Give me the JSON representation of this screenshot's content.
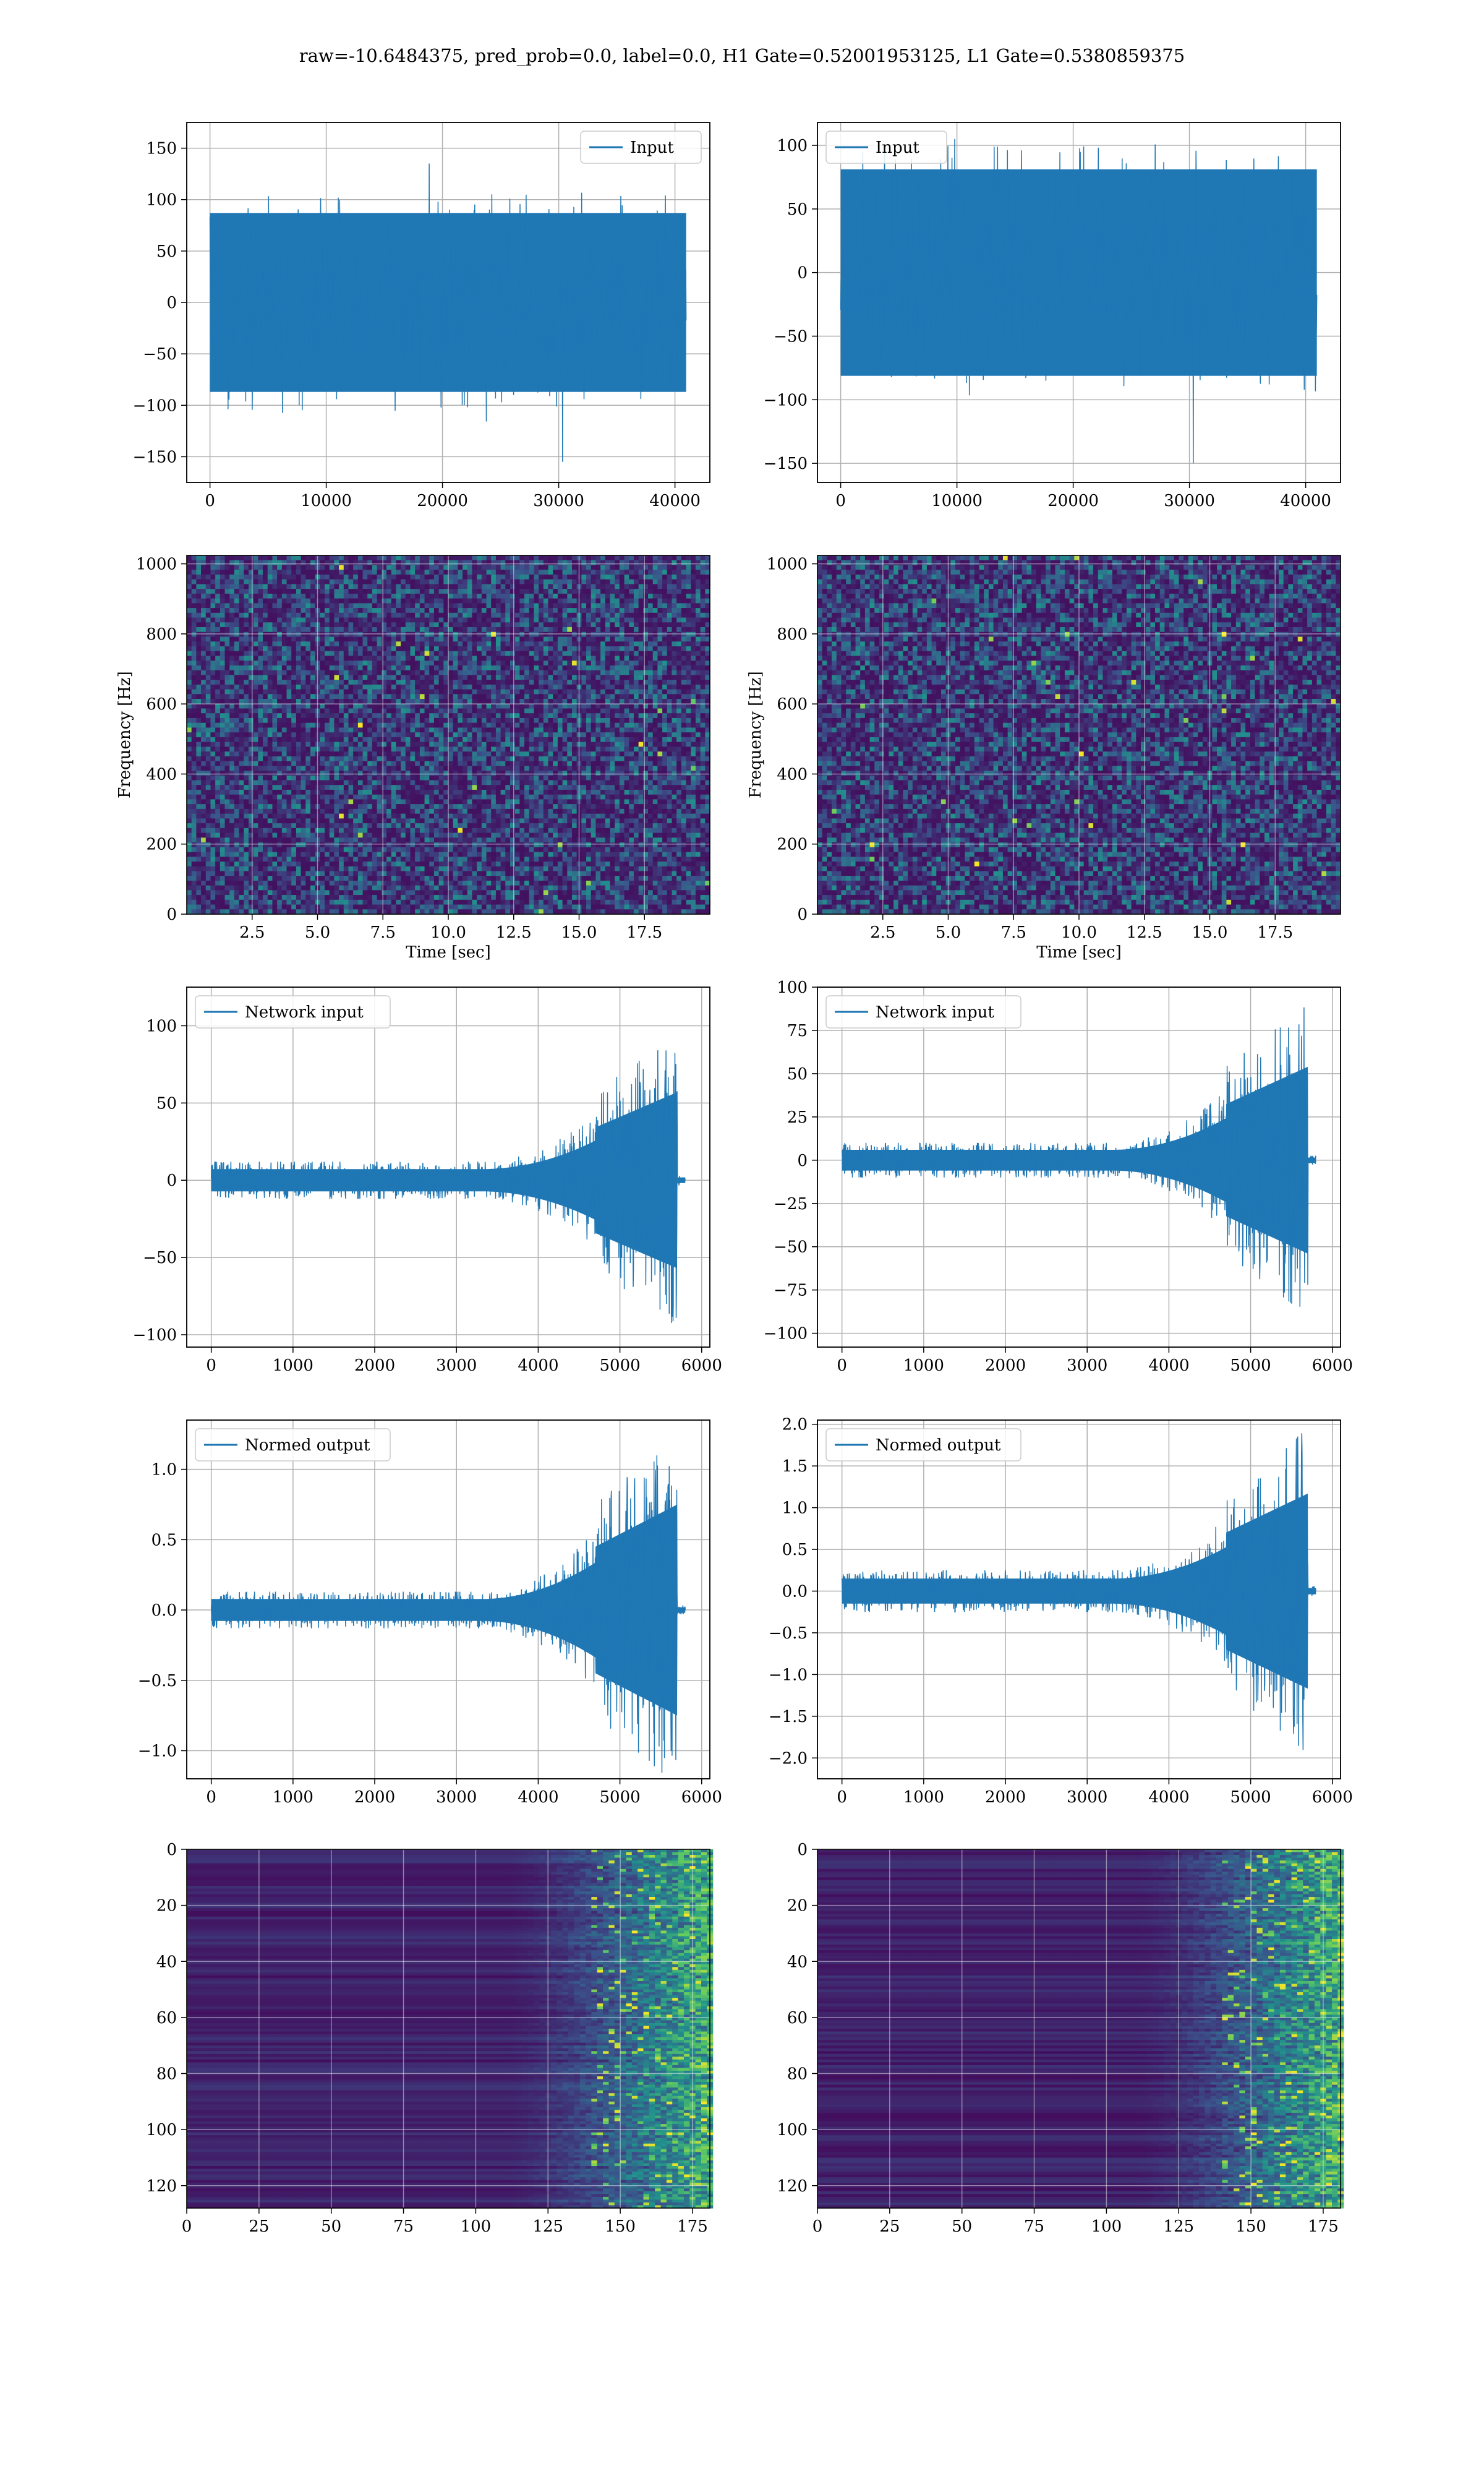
{
  "figure": {
    "suptitle": "raw=-10.6484375, pred_prob=0.0, label=0.0, H1 Gate=0.52001953125, L1 Gate=0.5380859375"
  },
  "colors": {
    "line": "#1f77b4",
    "grid": "#b0b0b0",
    "viridis_low": "#440154",
    "viridis_mid": "#21918c",
    "viridis_high": "#fde725"
  },
  "chart_data": [
    {
      "id": "input_h1",
      "type": "line",
      "row": 0,
      "col": 0,
      "legend": "Input",
      "legend_loc": "upper-right",
      "xlim": [
        -2000,
        43000
      ],
      "ylim": [
        -175,
        175
      ],
      "xticks": [
        0,
        10000,
        20000,
        30000,
        40000
      ],
      "xtick_labels": [
        "0",
        "10000",
        "20000",
        "30000",
        "40000"
      ],
      "yticks": [
        -150,
        -100,
        -50,
        0,
        50,
        100,
        150
      ],
      "ytick_labels": [
        "−150",
        "−100",
        "−50",
        "0",
        "50",
        "100",
        "150"
      ],
      "x_range": [
        0,
        40960
      ],
      "noise_amplitude": 30,
      "spike_max": 150,
      "spike_min": -155
    },
    {
      "id": "input_l1",
      "type": "line",
      "row": 0,
      "col": 1,
      "legend": "Input",
      "legend_loc": "upper-left",
      "xlim": [
        -2000,
        43000
      ],
      "ylim": [
        -165,
        118
      ],
      "xticks": [
        0,
        10000,
        20000,
        30000,
        40000
      ],
      "xtick_labels": [
        "0",
        "10000",
        "20000",
        "30000",
        "40000"
      ],
      "yticks": [
        -150,
        -100,
        -50,
        0,
        50,
        100
      ],
      "ytick_labels": [
        "−150",
        "−100",
        "−50",
        "0",
        "50",
        "100"
      ],
      "x_range": [
        0,
        40960
      ],
      "noise_amplitude": 28,
      "spike_max": 105,
      "spike_min": -150
    },
    {
      "id": "spec_h1",
      "type": "heatmap",
      "row": 1,
      "col": 0,
      "xlabel": "Time [sec]",
      "ylabel": "Frequency [Hz]",
      "xlim": [
        0,
        20
      ],
      "ylim": [
        0,
        1024
      ],
      "xticks": [
        2.5,
        5.0,
        7.5,
        10.0,
        12.5,
        15.0,
        17.5
      ],
      "xtick_labels": [
        "2.5",
        "5.0",
        "7.5",
        "10.0",
        "12.5",
        "15.0",
        "17.5"
      ],
      "yticks": [
        0,
        200,
        400,
        600,
        800,
        1000
      ],
      "ytick_labels": [
        "0",
        "200",
        "400",
        "600",
        "800",
        "1000"
      ]
    },
    {
      "id": "spec_l1",
      "type": "heatmap",
      "row": 1,
      "col": 1,
      "xlabel": "Time [sec]",
      "ylabel": "Frequency [Hz]",
      "xlim": [
        0,
        20
      ],
      "ylim": [
        0,
        1024
      ],
      "xticks": [
        2.5,
        5.0,
        7.5,
        10.0,
        12.5,
        15.0,
        17.5
      ],
      "xtick_labels": [
        "2.5",
        "5.0",
        "7.5",
        "10.0",
        "12.5",
        "15.0",
        "17.5"
      ],
      "yticks": [
        0,
        200,
        400,
        600,
        800,
        1000
      ],
      "ytick_labels": [
        "0",
        "200",
        "400",
        "600",
        "800",
        "1000"
      ]
    },
    {
      "id": "netin_h1",
      "type": "line",
      "row": 2,
      "col": 0,
      "legend": "Network input",
      "legend_loc": "upper-left",
      "xlim": [
        -300,
        6100
      ],
      "ylim": [
        -108,
        125
      ],
      "xticks": [
        0,
        1000,
        2000,
        3000,
        4000,
        5000,
        6000
      ],
      "xtick_labels": [
        "0",
        "1000",
        "2000",
        "3000",
        "4000",
        "5000",
        "6000"
      ],
      "yticks": [
        -100,
        -50,
        0,
        50,
        100
      ],
      "ytick_labels": [
        "−100",
        "−50",
        "0",
        "50",
        "100"
      ],
      "x_range": [
        0,
        5800
      ],
      "base_amplitude": 12,
      "peak_amplitude": 95,
      "burst_start": 4700,
      "burst_end": 5700
    },
    {
      "id": "netin_l1",
      "type": "line",
      "row": 2,
      "col": 1,
      "legend": "Network input",
      "legend_loc": "upper-left",
      "xlim": [
        -300,
        6100
      ],
      "ylim": [
        -108,
        100
      ],
      "xticks": [
        0,
        1000,
        2000,
        3000,
        4000,
        5000,
        6000
      ],
      "xtick_labels": [
        "0",
        "1000",
        "2000",
        "3000",
        "4000",
        "5000",
        "6000"
      ],
      "yticks": [
        -100,
        -75,
        -50,
        -25,
        0,
        25,
        50,
        75,
        100
      ],
      "ytick_labels": [
        "−100",
        "−75",
        "−50",
        "−25",
        "0",
        "25",
        "50",
        "75",
        "100"
      ],
      "x_range": [
        0,
        5800
      ],
      "base_amplitude": 10,
      "peak_amplitude": 90,
      "burst_start": 4700,
      "burst_end": 5700
    },
    {
      "id": "normed_h1",
      "type": "line",
      "row": 3,
      "col": 0,
      "legend": "Normed output",
      "legend_loc": "upper-left",
      "xlim": [
        -300,
        6100
      ],
      "ylim": [
        -1.2,
        1.35
      ],
      "xticks": [
        0,
        1000,
        2000,
        3000,
        4000,
        5000,
        6000
      ],
      "xtick_labels": [
        "0",
        "1000",
        "2000",
        "3000",
        "4000",
        "5000",
        "6000"
      ],
      "yticks": [
        -1.0,
        -0.5,
        0.0,
        0.5,
        1.0
      ],
      "ytick_labels": [
        "−1.0",
        "−0.5",
        "0.0",
        "0.5",
        "1.0"
      ],
      "x_range": [
        0,
        5800
      ],
      "base_amplitude": 0.13,
      "peak_amplitude": 1.25,
      "burst_start": 4700,
      "burst_end": 5700
    },
    {
      "id": "normed_l1",
      "type": "line",
      "row": 3,
      "col": 1,
      "legend": "Normed output",
      "legend_loc": "upper-left",
      "xlim": [
        -300,
        6100
      ],
      "ylim": [
        -2.25,
        2.05
      ],
      "xticks": [
        0,
        1000,
        2000,
        3000,
        4000,
        5000,
        6000
      ],
      "xtick_labels": [
        "0",
        "1000",
        "2000",
        "3000",
        "4000",
        "5000",
        "6000"
      ],
      "yticks": [
        -2.0,
        -1.5,
        -1.0,
        -0.5,
        0.0,
        0.5,
        1.0,
        1.5,
        2.0
      ],
      "ytick_labels": [
        "−2.0",
        "−1.5",
        "−1.0",
        "−0.5",
        "0.0",
        "0.5",
        "1.0",
        "1.5",
        "2.0"
      ],
      "x_range": [
        0,
        5800
      ],
      "base_amplitude": 0.25,
      "peak_amplitude": 1.95,
      "burst_start": 4700,
      "burst_end": 5700
    },
    {
      "id": "feat_h1",
      "type": "heatmap",
      "row": 4,
      "col": 0,
      "xlim": [
        0,
        181
      ],
      "ylim": [
        128,
        0
      ],
      "xticks": [
        0,
        25,
        50,
        75,
        100,
        125,
        150,
        175
      ],
      "xtick_labels": [
        "0",
        "25",
        "50",
        "75",
        "100",
        "125",
        "150",
        "175"
      ],
      "yticks": [
        0,
        20,
        40,
        60,
        80,
        100,
        120
      ],
      "ytick_labels": [
        "0",
        "20",
        "40",
        "60",
        "80",
        "100",
        "120"
      ]
    },
    {
      "id": "feat_l1",
      "type": "heatmap",
      "row": 4,
      "col": 1,
      "xlim": [
        0,
        181
      ],
      "ylim": [
        128,
        0
      ],
      "xticks": [
        0,
        25,
        50,
        75,
        100,
        125,
        150,
        175
      ],
      "xtick_labels": [
        "0",
        "25",
        "50",
        "75",
        "100",
        "125",
        "150",
        "175"
      ],
      "yticks": [
        0,
        20,
        40,
        60,
        80,
        100,
        120
      ],
      "ytick_labels": [
        "0",
        "20",
        "40",
        "60",
        "80",
        "100",
        "120"
      ]
    }
  ]
}
